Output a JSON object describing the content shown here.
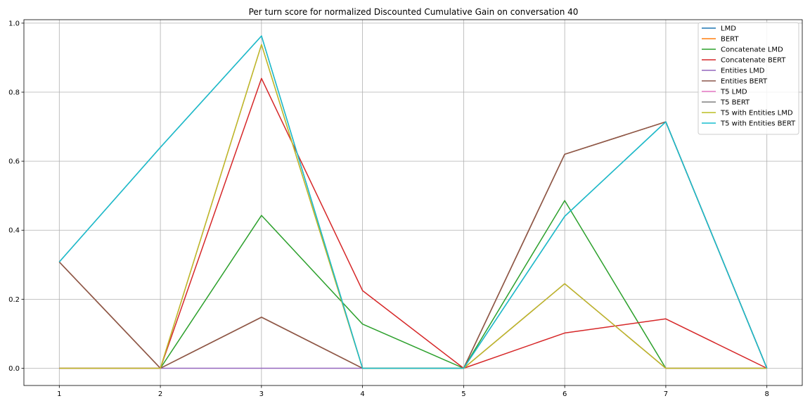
{
  "chart_data": {
    "type": "line",
    "title": "Per turn score for normalized Discounted Cumulative Gain on conversation 40",
    "xlabel": "",
    "ylabel": "",
    "x": [
      1,
      2,
      3,
      4,
      5,
      6,
      7,
      8
    ],
    "xlim": [
      0.65,
      8.35
    ],
    "ylim": [
      -0.05,
      1.01
    ],
    "xticks": [
      "1",
      "2",
      "3",
      "4",
      "5",
      "6",
      "7",
      "8"
    ],
    "yticks": [
      "0.0",
      "0.2",
      "0.4",
      "0.6",
      "0.8",
      "1.0"
    ],
    "grid": true,
    "legend_position": "top-right",
    "series": [
      {
        "name": "LMD",
        "color": "#1f77b4",
        "values": [
          0.308,
          0.0,
          0.148,
          0.0,
          0.0,
          0.62,
          0.714,
          0.0
        ]
      },
      {
        "name": "BERT",
        "color": "#ff7f0e",
        "values": [
          0.308,
          0.0,
          0.148,
          0.0,
          0.0,
          0.62,
          0.714,
          0.0
        ]
      },
      {
        "name": "Concatenate LMD",
        "color": "#2ca02c",
        "values": [
          0.0,
          0.0,
          0.443,
          0.128,
          0.0,
          0.486,
          0.0,
          0.0
        ]
      },
      {
        "name": "Concatenate BERT",
        "color": "#d62728",
        "values": [
          0.0,
          0.0,
          0.84,
          0.225,
          0.0,
          0.102,
          0.143,
          0.0
        ]
      },
      {
        "name": "Entities LMD",
        "color": "#9467bd",
        "values": [
          0.0,
          0.0,
          0.0,
          0.0,
          0.0,
          0.245,
          0.0,
          0.0
        ]
      },
      {
        "name": "Entities BERT",
        "color": "#8c564b",
        "values": [
          0.308,
          0.0,
          0.148,
          0.0,
          0.0,
          0.62,
          0.714,
          0.0
        ]
      },
      {
        "name": "T5 LMD",
        "color": "#e377c2",
        "values": [
          0.0,
          0.0,
          0.938,
          0.0,
          0.0,
          0.245,
          0.0,
          0.0
        ]
      },
      {
        "name": "T5 BERT",
        "color": "#7f7f7f",
        "values": [
          0.308,
          0.64,
          0.963,
          0.0,
          0.0,
          0.44,
          0.714,
          0.0
        ]
      },
      {
        "name": "T5 with Entities LMD",
        "color": "#bcbd22",
        "values": [
          0.0,
          0.0,
          0.938,
          0.0,
          0.0,
          0.245,
          0.0,
          0.0
        ]
      },
      {
        "name": "T5 with Entities BERT",
        "color": "#17becf",
        "values": [
          0.308,
          0.64,
          0.963,
          0.0,
          0.0,
          0.44,
          0.714,
          0.0
        ]
      }
    ]
  }
}
